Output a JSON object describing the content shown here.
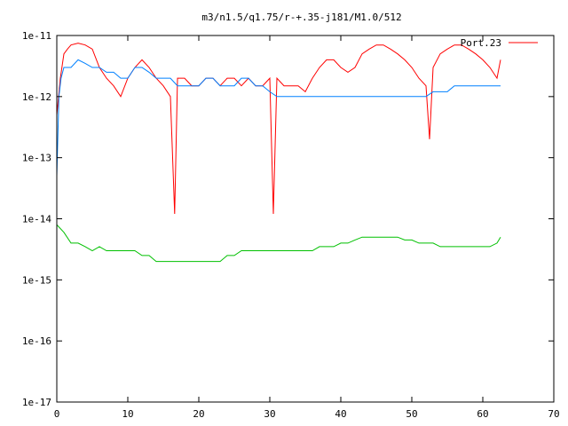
{
  "chart_data": {
    "type": "line",
    "title": "m3/n1.5/q1.75/r-+.35-j181/M1.0/512",
    "xlabel": "",
    "ylabel": "",
    "xlim": [
      0,
      70
    ],
    "ylim": [
      1e-17,
      1e-11
    ],
    "y_scale": "log",
    "grid": false,
    "legend_position": "top-right",
    "x_ticks": [
      0,
      10,
      20,
      30,
      40,
      50,
      60,
      70
    ],
    "y_ticks": [
      1e-17,
      1e-16,
      1e-15,
      1e-14,
      1e-13,
      1e-12,
      1e-11
    ],
    "x_tick_labels": [
      "0",
      "10",
      "20",
      "30",
      "40",
      "50",
      "60",
      "70"
    ],
    "y_tick_labels": [
      "1e-17",
      "1e-16",
      "1e-15",
      "1e-14",
      "1e-13",
      "1e-12",
      "1e-11"
    ],
    "series": [
      {
        "name": "Port.23",
        "color": "#ff0000",
        "x": [
          0,
          0.5,
          1,
          1.5,
          2,
          3,
          4,
          5,
          6,
          7,
          8,
          9,
          10,
          11,
          12,
          13,
          14,
          15,
          16,
          16.6,
          17,
          18,
          19,
          20,
          21,
          22,
          23,
          24,
          25,
          26,
          27,
          28,
          29,
          30,
          30.5,
          31,
          32,
          33,
          34,
          35,
          36,
          37,
          38,
          39,
          40,
          41,
          42,
          43,
          44,
          45,
          46,
          47,
          48,
          49,
          50,
          51,
          52,
          52.5,
          53,
          54,
          55,
          56,
          57,
          58,
          59,
          60,
          61,
          62,
          62.5
        ],
        "y": [
          5e-13,
          2e-12,
          5e-12,
          6e-12,
          7e-12,
          7.5e-12,
          7e-12,
          6e-12,
          3e-12,
          2e-12,
          1.5e-12,
          1e-12,
          2e-12,
          3e-12,
          4e-12,
          3e-12,
          2e-12,
          1.5e-12,
          1e-12,
          1.2e-14,
          2e-12,
          2e-12,
          1.5e-12,
          1.5e-12,
          2e-12,
          2e-12,
          1.5e-12,
          2e-12,
          2e-12,
          1.5e-12,
          2e-12,
          1.5e-12,
          1.5e-12,
          2e-12,
          1.2e-14,
          2e-12,
          1.5e-12,
          1.5e-12,
          1.5e-12,
          1.2e-12,
          2e-12,
          3e-12,
          4e-12,
          4e-12,
          3e-12,
          2.5e-12,
          3e-12,
          5e-12,
          6e-12,
          7e-12,
          7e-12,
          6e-12,
          5e-12,
          4e-12,
          3e-12,
          2e-12,
          1.5e-12,
          2e-13,
          3e-12,
          5e-12,
          6e-12,
          7e-12,
          7e-12,
          6e-12,
          5e-12,
          4e-12,
          3e-12,
          2e-12,
          4e-12
        ]
      },
      {
        "name": "",
        "color": "#0080ff",
        "x": [
          0,
          0.3,
          0.6,
          1,
          2,
          3,
          4,
          5,
          6,
          7,
          8,
          9,
          10,
          11,
          12,
          13,
          14,
          15,
          16,
          17,
          18,
          19,
          20,
          21,
          22,
          23,
          24,
          25,
          26,
          27,
          28,
          29,
          30,
          31,
          32,
          33,
          34,
          35,
          36,
          37,
          38,
          39,
          40,
          41,
          42,
          43,
          44,
          45,
          46,
          47,
          48,
          49,
          50,
          51,
          52,
          53,
          54,
          55,
          56,
          57,
          58,
          59,
          60,
          61,
          62,
          62.5
        ],
        "y": [
          5e-14,
          1e-12,
          2e-12,
          3e-12,
          3e-12,
          4e-12,
          3.5e-12,
          3e-12,
          3e-12,
          2.5e-12,
          2.5e-12,
          2e-12,
          2e-12,
          3e-12,
          3e-12,
          2.5e-12,
          2e-12,
          2e-12,
          2e-12,
          1.5e-12,
          1.5e-12,
          1.5e-12,
          1.5e-12,
          2e-12,
          2e-12,
          1.5e-12,
          1.5e-12,
          1.5e-12,
          2e-12,
          2e-12,
          1.5e-12,
          1.5e-12,
          1.2e-12,
          1e-12,
          1e-12,
          1e-12,
          1e-12,
          1e-12,
          1e-12,
          1e-12,
          1e-12,
          1e-12,
          1e-12,
          1e-12,
          1e-12,
          1e-12,
          1e-12,
          1e-12,
          1e-12,
          1e-12,
          1e-12,
          1e-12,
          1e-12,
          1e-12,
          1e-12,
          1.2e-12,
          1.2e-12,
          1.2e-12,
          1.5e-12,
          1.5e-12,
          1.5e-12,
          1.5e-12,
          1.5e-12,
          1.5e-12,
          1.5e-12,
          1.5e-12
        ]
      },
      {
        "name": "",
        "color": "#00c000",
        "x": [
          0,
          1,
          2,
          3,
          4,
          5,
          6,
          7,
          8,
          9,
          10,
          11,
          12,
          13,
          14,
          15,
          16,
          17,
          18,
          19,
          20,
          21,
          22,
          23,
          24,
          25,
          26,
          27,
          28,
          29,
          30,
          31,
          32,
          33,
          34,
          35,
          36,
          37,
          38,
          39,
          40,
          41,
          42,
          43,
          44,
          45,
          46,
          47,
          48,
          49,
          50,
          51,
          52,
          53,
          54,
          55,
          56,
          57,
          58,
          59,
          60,
          61,
          62,
          62.5
        ],
        "y": [
          8e-15,
          6e-15,
          4e-15,
          4e-15,
          3.5e-15,
          3e-15,
          3.5e-15,
          3e-15,
          3e-15,
          3e-15,
          3e-15,
          3e-15,
          2.5e-15,
          2.5e-15,
          2e-15,
          2e-15,
          2e-15,
          2e-15,
          2e-15,
          2e-15,
          2e-15,
          2e-15,
          2e-15,
          2e-15,
          2.5e-15,
          2.5e-15,
          3e-15,
          3e-15,
          3e-15,
          3e-15,
          3e-15,
          3e-15,
          3e-15,
          3e-15,
          3e-15,
          3e-15,
          3e-15,
          3.5e-15,
          3.5e-15,
          3.5e-15,
          4e-15,
          4e-15,
          4.5e-15,
          5e-15,
          5e-15,
          5e-15,
          5e-15,
          5e-15,
          5e-15,
          4.5e-15,
          4.5e-15,
          4e-15,
          4e-15,
          4e-15,
          3.5e-15,
          3.5e-15,
          3.5e-15,
          3.5e-15,
          3.5e-15,
          3.5e-15,
          3.5e-15,
          3.5e-15,
          4e-15,
          5e-15
        ]
      }
    ]
  }
}
